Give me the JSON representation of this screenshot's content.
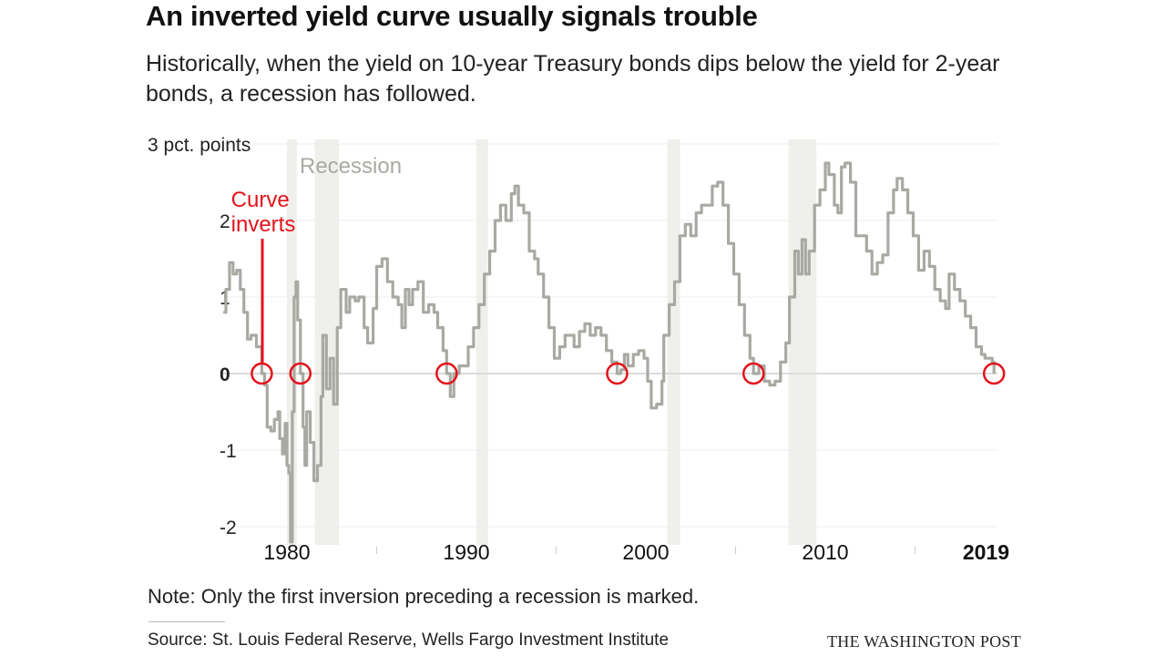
{
  "header": {
    "title": "An inverted yield curve usually signals trouble",
    "subtitle": "Historically, when the yield on 10-year Treasury bonds dips below the yield for 2-year bonds, a recession has followed."
  },
  "footer": {
    "note": "Note: Only the first inversion preceding a recession is marked.",
    "source": "Source: St. Louis Federal Reserve, Wells Fargo Investment Institute",
    "brand": "THE WASHINGTON POST"
  },
  "colors": {
    "line": "#a9a9a3",
    "recession": "#efefeb",
    "highlight": "#e3131b",
    "grid": "#ececec"
  },
  "chart_data": {
    "type": "line",
    "title": "",
    "ylabel": "3 pct. points",
    "ylim": [
      -2.2,
      3
    ],
    "xlim": [
      1976.45,
      2019.4
    ],
    "yticks": [
      {
        "v": 3,
        "label": "3 pct. points"
      },
      {
        "v": 2,
        "label": "2"
      },
      {
        "v": 1,
        "label": "1"
      },
      {
        "v": 0,
        "label": "0"
      },
      {
        "v": -1,
        "label": "-1"
      },
      {
        "v": -2,
        "label": "-2"
      }
    ],
    "xticks": [
      {
        "v": 1980,
        "label": "1980"
      },
      {
        "v": 1985,
        "label": ""
      },
      {
        "v": 1990,
        "label": "1990"
      },
      {
        "v": 1995,
        "label": ""
      },
      {
        "v": 2000,
        "label": "2000"
      },
      {
        "v": 2005,
        "label": ""
      },
      {
        "v": 2010,
        "label": "2010"
      },
      {
        "v": 2015,
        "label": ""
      },
      {
        "v": 2019,
        "label": "2019"
      }
    ],
    "grid": true,
    "recession_label": "Recession",
    "recessions": [
      [
        1980.0,
        1980.55
      ],
      [
        1981.55,
        1982.9
      ],
      [
        1990.55,
        1991.2
      ],
      [
        2001.2,
        2001.9
      ],
      [
        2007.95,
        2009.5
      ]
    ],
    "annotation": "Curve inverts",
    "inversions": [
      1978.6,
      1980.75,
      1988.9,
      1998.4,
      2006.0,
      2019.4
    ],
    "series": [
      {
        "points": [
          [
            1976.45,
            0.8
          ],
          [
            1976.6,
            1.1
          ],
          [
            1976.8,
            1.45
          ],
          [
            1977.0,
            1.3
          ],
          [
            1977.2,
            1.35
          ],
          [
            1977.4,
            1.1
          ],
          [
            1977.6,
            0.8
          ],
          [
            1977.8,
            0.45
          ],
          [
            1978.0,
            0.5
          ],
          [
            1978.3,
            0.35
          ],
          [
            1978.6,
            0.0
          ],
          [
            1978.75,
            -0.15
          ],
          [
            1978.9,
            -0.7
          ],
          [
            1979.1,
            -0.75
          ],
          [
            1979.3,
            -0.6
          ],
          [
            1979.5,
            -0.5
          ],
          [
            1979.6,
            -0.85
          ],
          [
            1979.75,
            -1.05
          ],
          [
            1979.9,
            -0.65
          ],
          [
            1980.0,
            -1.2
          ],
          [
            1980.1,
            -1.3
          ],
          [
            1980.2,
            -2.2
          ],
          [
            1980.3,
            -0.5
          ],
          [
            1980.4,
            1.0
          ],
          [
            1980.5,
            1.2
          ],
          [
            1980.6,
            0.7
          ],
          [
            1980.75,
            0.0
          ],
          [
            1980.9,
            -0.7
          ],
          [
            1981.0,
            -1.2
          ],
          [
            1981.1,
            -0.5
          ],
          [
            1981.3,
            -0.9
          ],
          [
            1981.5,
            -1.4
          ],
          [
            1981.7,
            -1.2
          ],
          [
            1981.9,
            -0.3
          ],
          [
            1982.0,
            0.5
          ],
          [
            1982.2,
            -0.2
          ],
          [
            1982.4,
            0.2
          ],
          [
            1982.6,
            -0.4
          ],
          [
            1982.8,
            0.6
          ],
          [
            1983.0,
            1.1
          ],
          [
            1983.3,
            0.8
          ],
          [
            1983.5,
            1.0
          ],
          [
            1983.8,
            0.95
          ],
          [
            1984.0,
            1.0
          ],
          [
            1984.3,
            0.6
          ],
          [
            1984.5,
            0.4
          ],
          [
            1984.8,
            0.85
          ],
          [
            1985.0,
            1.4
          ],
          [
            1985.3,
            1.5
          ],
          [
            1985.6,
            1.2
          ],
          [
            1985.9,
            1.0
          ],
          [
            1986.2,
            0.9
          ],
          [
            1986.4,
            0.6
          ],
          [
            1986.6,
            1.1
          ],
          [
            1986.8,
            0.9
          ],
          [
            1987.0,
            1.1
          ],
          [
            1987.3,
            1.2
          ],
          [
            1987.6,
            0.8
          ],
          [
            1987.9,
            0.9
          ],
          [
            1988.2,
            0.8
          ],
          [
            1988.4,
            0.6
          ],
          [
            1988.7,
            0.3
          ],
          [
            1988.9,
            0.0
          ],
          [
            1989.1,
            -0.3
          ],
          [
            1989.3,
            0.0
          ],
          [
            1989.6,
            0.1
          ],
          [
            1989.9,
            0.1
          ],
          [
            1990.1,
            0.35
          ],
          [
            1990.4,
            0.6
          ],
          [
            1990.7,
            0.9
          ],
          [
            1991.0,
            1.3
          ],
          [
            1991.3,
            1.6
          ],
          [
            1991.6,
            2.0
          ],
          [
            1991.9,
            2.2
          ],
          [
            1992.2,
            2.0
          ],
          [
            1992.5,
            2.35
          ],
          [
            1992.7,
            2.45
          ],
          [
            1992.9,
            2.2
          ],
          [
            1993.2,
            2.1
          ],
          [
            1993.5,
            1.6
          ],
          [
            1993.8,
            1.5
          ],
          [
            1994.0,
            1.3
          ],
          [
            1994.3,
            1.0
          ],
          [
            1994.6,
            0.6
          ],
          [
            1994.9,
            0.2
          ],
          [
            1995.2,
            0.35
          ],
          [
            1995.5,
            0.5
          ],
          [
            1995.8,
            0.5
          ],
          [
            1996.0,
            0.35
          ],
          [
            1996.3,
            0.55
          ],
          [
            1996.6,
            0.65
          ],
          [
            1996.9,
            0.5
          ],
          [
            1997.2,
            0.6
          ],
          [
            1997.5,
            0.5
          ],
          [
            1997.8,
            0.3
          ],
          [
            1998.1,
            0.15
          ],
          [
            1998.4,
            0.0
          ],
          [
            1998.6,
            0.05
          ],
          [
            1998.8,
            0.25
          ],
          [
            1999.0,
            0.1
          ],
          [
            1999.3,
            0.25
          ],
          [
            1999.6,
            0.3
          ],
          [
            1999.9,
            0.2
          ],
          [
            2000.1,
            -0.1
          ],
          [
            2000.3,
            -0.45
          ],
          [
            2000.6,
            -0.4
          ],
          [
            2000.9,
            -0.1
          ],
          [
            2001.0,
            0.5
          ],
          [
            2001.3,
            0.9
          ],
          [
            2001.6,
            1.2
          ],
          [
            2001.9,
            1.8
          ],
          [
            2002.2,
            1.95
          ],
          [
            2002.5,
            1.8
          ],
          [
            2002.8,
            2.1
          ],
          [
            2003.1,
            2.2
          ],
          [
            2003.4,
            2.2
          ],
          [
            2003.7,
            2.45
          ],
          [
            2004.0,
            2.5
          ],
          [
            2004.3,
            2.2
          ],
          [
            2004.6,
            1.7
          ],
          [
            2004.9,
            1.3
          ],
          [
            2005.2,
            0.9
          ],
          [
            2005.5,
            0.5
          ],
          [
            2005.8,
            0.2
          ],
          [
            2006.0,
            0.0
          ],
          [
            2006.3,
            0.1
          ],
          [
            2006.6,
            -0.1
          ],
          [
            2006.9,
            -0.15
          ],
          [
            2007.2,
            -0.1
          ],
          [
            2007.5,
            0.15
          ],
          [
            2007.8,
            0.4
          ],
          [
            2008.0,
            1.0
          ],
          [
            2008.3,
            1.6
          ],
          [
            2008.5,
            1.3
          ],
          [
            2008.7,
            1.75
          ],
          [
            2008.9,
            1.3
          ],
          [
            2009.1,
            1.6
          ],
          [
            2009.4,
            2.2
          ],
          [
            2009.7,
            2.4
          ],
          [
            2010.0,
            2.75
          ],
          [
            2010.2,
            2.6
          ],
          [
            2010.5,
            2.2
          ],
          [
            2010.7,
            2.1
          ],
          [
            2010.9,
            2.7
          ],
          [
            2011.1,
            2.75
          ],
          [
            2011.4,
            2.5
          ],
          [
            2011.7,
            1.8
          ],
          [
            2012.0,
            1.8
          ],
          [
            2012.3,
            1.6
          ],
          [
            2012.6,
            1.3
          ],
          [
            2012.9,
            1.45
          ],
          [
            2013.2,
            1.55
          ],
          [
            2013.5,
            2.1
          ],
          [
            2013.8,
            2.4
          ],
          [
            2014.0,
            2.55
          ],
          [
            2014.3,
            2.4
          ],
          [
            2014.6,
            2.1
          ],
          [
            2014.9,
            1.8
          ],
          [
            2015.2,
            1.35
          ],
          [
            2015.5,
            1.6
          ],
          [
            2015.8,
            1.4
          ],
          [
            2016.1,
            1.1
          ],
          [
            2016.4,
            0.95
          ],
          [
            2016.7,
            0.85
          ],
          [
            2016.9,
            1.3
          ],
          [
            2017.2,
            1.1
          ],
          [
            2017.5,
            0.95
          ],
          [
            2017.8,
            0.75
          ],
          [
            2018.1,
            0.6
          ],
          [
            2018.4,
            0.35
          ],
          [
            2018.7,
            0.25
          ],
          [
            2018.9,
            0.2
          ],
          [
            2019.1,
            0.2
          ],
          [
            2019.3,
            0.15
          ],
          [
            2019.4,
            0.0
          ]
        ]
      }
    ]
  }
}
